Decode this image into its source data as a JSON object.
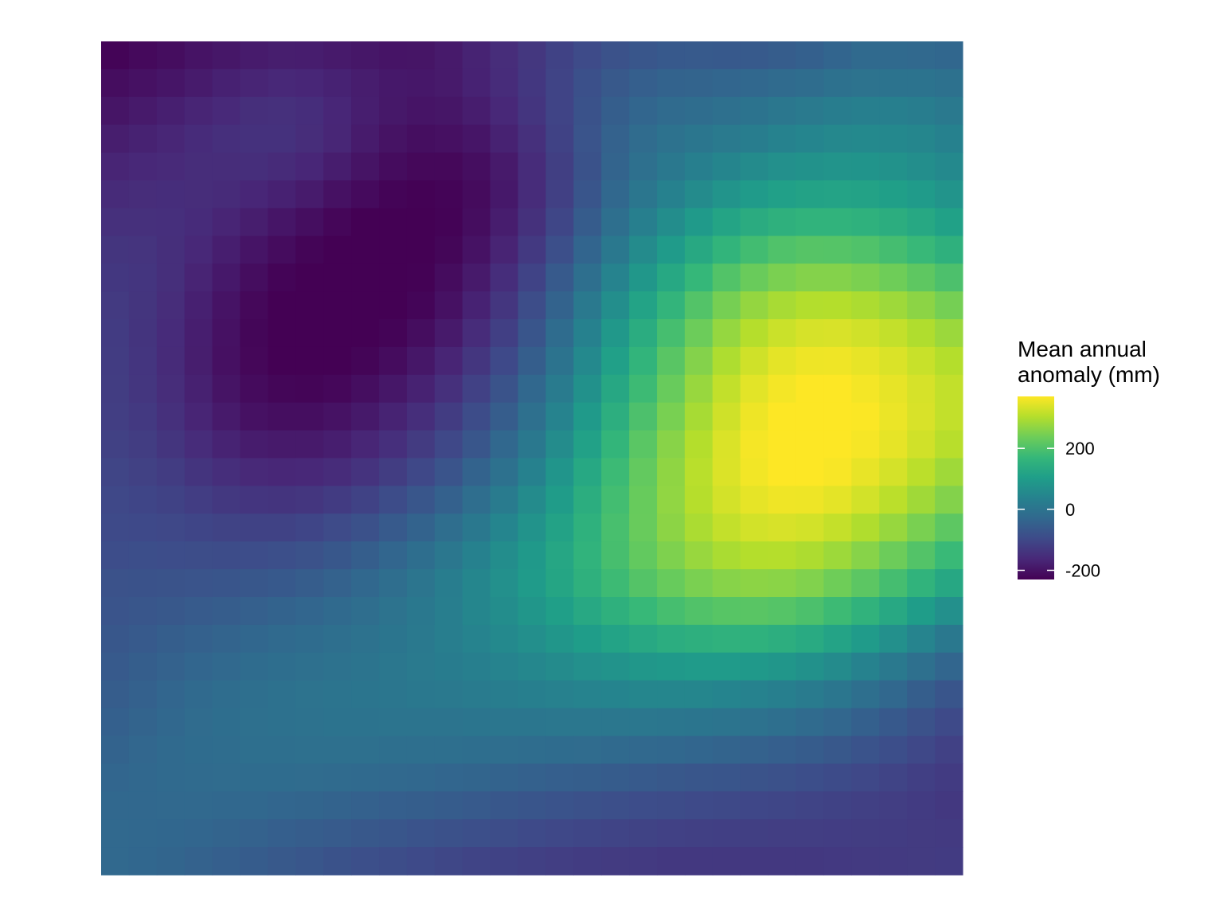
{
  "chart_data": {
    "type": "heatmap",
    "title": "",
    "xlabel": "",
    "ylabel": "",
    "grid": false,
    "legend": {
      "title_lines": [
        "Mean annual",
        "anomaly (mm)"
      ],
      "placement": "right",
      "ticks": [
        {
          "value": 200,
          "label": "200"
        },
        {
          "value": 0,
          "label": "0"
        },
        {
          "value": -200,
          "label": "-200"
        }
      ],
      "range": [
        -230,
        370
      ],
      "palette": [
        "#440154",
        "#482878",
        "#3E4A89",
        "#31688E",
        "#26828E",
        "#1F9E89",
        "#35B779",
        "#6DCD59",
        "#B4DE2C",
        "#FDE725"
      ]
    },
    "rows": 30,
    "cols": 31,
    "values_order": "row-major, first row = top",
    "values": [
      [
        -225,
        -216,
        -210,
        -199,
        -193,
        -185,
        -181,
        -182,
        -187,
        -193,
        -197,
        -196,
        -187,
        -172,
        -154,
        -134,
        -113,
        -95,
        -80,
        -69,
        -63,
        -62,
        -63,
        -61,
        -54,
        -47,
        -36,
        -24,
        -25,
        -27,
        -32
      ],
      [
        -210,
        -203,
        -195,
        -186,
        -175,
        -168,
        -163,
        -166,
        -173,
        -182,
        -190,
        -192,
        -187,
        -173,
        -156,
        -133,
        -108,
        -83,
        -64,
        -50,
        -42,
        -38,
        -34,
        -29,
        -22,
        -16,
        -8,
        -3,
        -1,
        -2,
        -6
      ],
      [
        -196,
        -188,
        -179,
        -168,
        -161,
        -150,
        -148,
        -153,
        -166,
        -180,
        -191,
        -197,
        -194,
        -182,
        -164,
        -137,
        -109,
        -78,
        -52,
        -34,
        -22,
        -16,
        -9,
        -1,
        8,
        15,
        23,
        29,
        28,
        24,
        14
      ],
      [
        -181,
        -174,
        -167,
        -157,
        -149,
        -145,
        -145,
        -154,
        -167,
        -186,
        -200,
        -207,
        -205,
        -195,
        -174,
        -147,
        -112,
        -75,
        -44,
        -21,
        -4,
        6,
        15,
        25,
        36,
        43,
        50,
        53,
        51,
        45,
        35
      ],
      [
        -169,
        -164,
        -160,
        -154,
        -154,
        -152,
        -158,
        -166,
        -182,
        -198,
        -211,
        -218,
        -218,
        -207,
        -187,
        -156,
        -119,
        -78,
        -39,
        -9,
        12,
        30,
        44,
        58,
        69,
        75,
        79,
        80,
        74,
        66,
        53
      ],
      [
        -158,
        -154,
        -153,
        -154,
        -158,
        -166,
        -175,
        -185,
        -202,
        -214,
        -225,
        -229,
        -225,
        -213,
        -190,
        -156,
        -117,
        -72,
        -30,
        7,
        35,
        59,
        79,
        96,
        108,
        115,
        117,
        115,
        107,
        96,
        79
      ],
      [
        -147,
        -147,
        -149,
        -157,
        -169,
        -181,
        -195,
        -208,
        -221,
        -230,
        -234,
        -234,
        -226,
        -209,
        -182,
        -146,
        -104,
        -57,
        -12,
        29,
        64,
        93,
        118,
        139,
        152,
        158,
        158,
        153,
        144,
        129,
        110
      ],
      [
        -138,
        -140,
        -150,
        -164,
        -180,
        -197,
        -212,
        -224,
        -235,
        -240,
        -240,
        -234,
        -222,
        -201,
        -170,
        -130,
        -85,
        -36,
        12,
        57,
        96,
        131,
        162,
        186,
        202,
        209,
        208,
        202,
        189,
        173,
        152
      ],
      [
        -133,
        -137,
        -150,
        -170,
        -190,
        -210,
        -225,
        -235,
        -240,
        -243,
        -238,
        -229,
        -211,
        -187,
        -153,
        -110,
        -62,
        -12,
        38,
        86,
        129,
        170,
        205,
        232,
        249,
        258,
        258,
        250,
        238,
        219,
        198
      ],
      [
        -128,
        -138,
        -154,
        -177,
        -199,
        -218,
        -232,
        -242,
        -245,
        -242,
        -236,
        -223,
        -202,
        -173,
        -136,
        -91,
        -41,
        13,
        66,
        116,
        163,
        206,
        245,
        273,
        292,
        302,
        303,
        296,
        283,
        266,
        244
      ],
      [
        -126,
        -139,
        -157,
        -180,
        -203,
        -222,
        -234,
        -240,
        -240,
        -237,
        -225,
        -209,
        -187,
        -156,
        -118,
        -72,
        -20,
        34,
        88,
        141,
        190,
        235,
        274,
        304,
        323,
        334,
        336,
        329,
        317,
        300,
        280
      ],
      [
        -124,
        -137,
        -158,
        -181,
        -204,
        -220,
        -231,
        -235,
        -232,
        -224,
        -211,
        -193,
        -168,
        -136,
        -98,
        -52,
        -1,
        54,
        108,
        162,
        213,
        258,
        298,
        328,
        347,
        356,
        357,
        350,
        338,
        322,
        303
      ],
      [
        -123,
        -135,
        -154,
        -176,
        -198,
        -213,
        -222,
        -224,
        -219,
        -208,
        -193,
        -174,
        -148,
        -114,
        -77,
        -31,
        19,
        73,
        127,
        180,
        231,
        277,
        316,
        345,
        362,
        370,
        370,
        362,
        350,
        334,
        316
      ],
      [
        -120,
        -130,
        -148,
        -168,
        -187,
        -202,
        -207,
        -207,
        -201,
        -189,
        -172,
        -152,
        -125,
        -93,
        -54,
        -9,
        40,
        93,
        146,
        198,
        247,
        291,
        328,
        356,
        372,
        378,
        376,
        368,
        354,
        336,
        316
      ],
      [
        -115,
        -123,
        -138,
        -155,
        -172,
        -184,
        -188,
        -187,
        -180,
        -167,
        -149,
        -127,
        -101,
        -69,
        -31,
        12,
        60,
        112,
        164,
        214,
        262,
        303,
        338,
        363,
        376,
        380,
        376,
        364,
        349,
        329,
        307
      ],
      [
        -107,
        -115,
        -125,
        -139,
        -152,
        -162,
        -165,
        -163,
        -155,
        -141,
        -123,
        -100,
        -74,
        -42,
        -6,
        35,
        81,
        129,
        178,
        225,
        269,
        308,
        339,
        360,
        371,
        372,
        365,
        351,
        333,
        310,
        284
      ],
      [
        -101,
        -106,
        -112,
        -122,
        -132,
        -137,
        -139,
        -135,
        -126,
        -112,
        -93,
        -71,
        -45,
        -15,
        19,
        57,
        98,
        143,
        187,
        230,
        270,
        305,
        332,
        349,
        357,
        356,
        347,
        331,
        310,
        285,
        257
      ],
      [
        -96,
        -98,
        -101,
        -106,
        -111,
        -113,
        -112,
        -106,
        -95,
        -81,
        -62,
        -40,
        -15,
        12,
        43,
        77,
        114,
        153,
        193,
        231,
        266,
        295,
        317,
        331,
        335,
        331,
        318,
        300,
        276,
        248,
        218
      ],
      [
        -89,
        -88,
        -90,
        -91,
        -92,
        -90,
        -86,
        -79,
        -67,
        -52,
        -34,
        -14,
        9,
        34,
        62,
        92,
        124,
        158,
        192,
        224,
        253,
        277,
        294,
        303,
        304,
        297,
        282,
        261,
        235,
        206,
        175
      ],
      [
        -80,
        -78,
        -77,
        -75,
        -72,
        -68,
        -63,
        -55,
        -44,
        -31,
        -15,
        3,
        23,
        45,
        69,
        95,
        123,
        152,
        180,
        207,
        230,
        249,
        261,
        266,
        264,
        255,
        238,
        216,
        189,
        159,
        127
      ],
      [
        -74,
        -69,
        -65,
        -59,
        -54,
        -48,
        -42,
        -35,
        -26,
        -15,
        -3,
        11,
        27,
        45,
        64,
        85,
        107,
        130,
        152,
        172,
        190,
        203,
        211,
        213,
        208,
        197,
        180,
        157,
        130,
        100,
        69
      ],
      [
        -68,
        -61,
        -53,
        -46,
        -39,
        -32,
        -26,
        -20,
        -13,
        -5,
        4,
        14,
        26,
        39,
        53,
        68,
        84,
        100,
        116,
        130,
        142,
        150,
        154,
        153,
        146,
        134,
        117,
        95,
        69,
        41,
        12
      ],
      [
        -61,
        -53,
        -44,
        -35,
        -27,
        -20,
        -14,
        -9,
        -4,
        2,
        8,
        15,
        22,
        30,
        39,
        49,
        59,
        69,
        78,
        86,
        92,
        95,
        95,
        91,
        84,
        72,
        57,
        37,
        14,
        -10,
        -35
      ],
      [
        -54,
        -45,
        -35,
        -26,
        -18,
        -12,
        -7,
        -3,
        1,
        4,
        7,
        10,
        14,
        18,
        23,
        28,
        33,
        38,
        42,
        45,
        46,
        45,
        42,
        37,
        29,
        18,
        5,
        -12,
        -31,
        -52,
        -73
      ],
      [
        -47,
        -38,
        -29,
        -21,
        -14,
        -9,
        -6,
        -4,
        -2,
        -1,
        0,
        1,
        2,
        4,
        5,
        7,
        8,
        9,
        9,
        9,
        7,
        4,
        0,
        -5,
        -12,
        -22,
        -33,
        -47,
        -63,
        -80,
        -97
      ],
      [
        -40,
        -33,
        -26,
        -20,
        -16,
        -13,
        -11,
        -10,
        -10,
        -10,
        -11,
        -12,
        -13,
        -14,
        -15,
        -17,
        -19,
        -21,
        -24,
        -27,
        -30,
        -34,
        -38,
        -43,
        -49,
        -57,
        -66,
        -76,
        -88,
        -101,
        -114
      ],
      [
        -34,
        -30,
        -26,
        -23,
        -21,
        -20,
        -20,
        -21,
        -23,
        -25,
        -28,
        -31,
        -34,
        -37,
        -41,
        -45,
        -49,
        -53,
        -57,
        -61,
        -65,
        -69,
        -73,
        -77,
        -82,
        -88,
        -94,
        -101,
        -109,
        -118,
        -126
      ],
      [
        -30,
        -29,
        -28,
        -28,
        -29,
        -31,
        -34,
        -37,
        -41,
        -45,
        -49,
        -53,
        -57,
        -62,
        -67,
        -72,
        -76,
        -81,
        -85,
        -89,
        -93,
        -96,
        -99,
        -102,
        -105,
        -109,
        -112,
        -117,
        -121,
        -126,
        -131
      ],
      [
        -28,
        -30,
        -32,
        -35,
        -39,
        -44,
        -49,
        -55,
        -60,
        -66,
        -71,
        -76,
        -81,
        -86,
        -91,
        -96,
        -100,
        -104,
        -108,
        -111,
        -114,
        -116,
        -118,
        -119,
        -120,
        -121,
        -122,
        -123,
        -125,
        -127,
        -129
      ],
      [
        -28,
        -32,
        -37,
        -43,
        -50,
        -57,
        -64,
        -71,
        -78,
        -85,
        -91,
        -97,
        -103,
        -108,
        -113,
        -117,
        -121,
        -124,
        -127,
        -129,
        -131,
        -132,
        -132,
        -132,
        -132,
        -131,
        -130,
        -129,
        -128,
        -127,
        -126
      ]
    ]
  }
}
